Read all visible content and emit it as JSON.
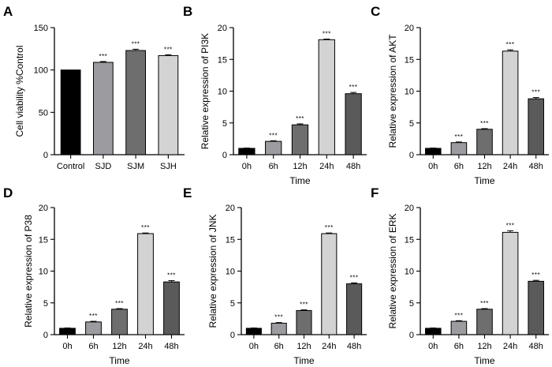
{
  "colors": {
    "black": "#000000",
    "grey_mid": "#9c9ca0",
    "grey_dark": "#6e6e6e",
    "grey_light": "#d3d3d3",
    "grey_deep": "#5a5a5a"
  },
  "chart_data": [
    {
      "panel": "A",
      "type": "bar",
      "title": "",
      "xlabel": "",
      "ylabel": "Cell viability %Control",
      "ylim": [
        0,
        150
      ],
      "yticks": [
        0,
        50,
        100,
        150
      ],
      "categories": [
        "Control",
        "SJD",
        "SJM",
        "SJH"
      ],
      "values": [
        100,
        109,
        123,
        117
      ],
      "errors": [
        0,
        1,
        1.5,
        1
      ],
      "significance": [
        "",
        "***",
        "***",
        "***"
      ],
      "bar_colors": [
        "#000000",
        "#9c9ca0",
        "#6e6e6e",
        "#d3d3d3"
      ],
      "grid": false
    },
    {
      "panel": "B",
      "type": "bar",
      "title": "",
      "xlabel": "Time",
      "ylabel": "Relative expression of PI3K",
      "ylim": [
        0,
        20
      ],
      "yticks": [
        0,
        5,
        10,
        15,
        20
      ],
      "categories": [
        "0h",
        "6h",
        "12h",
        "24h",
        "48h"
      ],
      "values": [
        1.0,
        2.1,
        4.7,
        18.1,
        9.6
      ],
      "errors": [
        0.05,
        0.1,
        0.15,
        0.1,
        0.2
      ],
      "significance": [
        "",
        "***",
        "***",
        "***",
        "***"
      ],
      "bar_colors": [
        "#000000",
        "#9c9ca0",
        "#6e6e6e",
        "#d3d3d3",
        "#5a5a5a"
      ],
      "grid": false
    },
    {
      "panel": "C",
      "type": "bar",
      "title": "",
      "xlabel": "Time",
      "ylabel": "Relative expression of  AKT",
      "ylim": [
        0,
        20
      ],
      "yticks": [
        0,
        5,
        10,
        15,
        20
      ],
      "categories": [
        "0h",
        "6h",
        "12h",
        "24h",
        "48h"
      ],
      "values": [
        1.0,
        1.9,
        4.0,
        16.3,
        8.8
      ],
      "errors": [
        0.05,
        0.1,
        0.1,
        0.2,
        0.2
      ],
      "significance": [
        "",
        "***",
        "***",
        "***",
        "***"
      ],
      "bar_colors": [
        "#000000",
        "#9c9ca0",
        "#6e6e6e",
        "#d3d3d3",
        "#5a5a5a"
      ],
      "grid": false
    },
    {
      "panel": "D",
      "type": "bar",
      "title": "",
      "xlabel": "Time",
      "ylabel": "Relative expression of P38",
      "ylim": [
        0,
        20
      ],
      "yticks": [
        0,
        5,
        10,
        15,
        20
      ],
      "categories": [
        "0h",
        "6h",
        "12h",
        "24h",
        "48h"
      ],
      "values": [
        1.0,
        2.0,
        4.0,
        15.9,
        8.3
      ],
      "errors": [
        0.05,
        0.1,
        0.1,
        0.1,
        0.2
      ],
      "significance": [
        "",
        "***",
        "***",
        "***",
        "***"
      ],
      "bar_colors": [
        "#000000",
        "#9c9ca0",
        "#6e6e6e",
        "#d3d3d3",
        "#5a5a5a"
      ],
      "grid": false
    },
    {
      "panel": "E",
      "type": "bar",
      "title": "",
      "xlabel": "Time",
      "ylabel": "Relative expression of JNK",
      "ylim": [
        0,
        20
      ],
      "yticks": [
        0,
        5,
        10,
        15,
        20
      ],
      "categories": [
        "0h",
        "6h",
        "12h",
        "24h",
        "48h"
      ],
      "values": [
        1.0,
        1.8,
        3.8,
        15.9,
        8.0
      ],
      "errors": [
        0.05,
        0.1,
        0.1,
        0.1,
        0.15
      ],
      "significance": [
        "",
        "***",
        "***",
        "***",
        "***"
      ],
      "bar_colors": [
        "#000000",
        "#9c9ca0",
        "#6e6e6e",
        "#d3d3d3",
        "#5a5a5a"
      ],
      "grid": false
    },
    {
      "panel": "F",
      "type": "bar",
      "title": "",
      "xlabel": "Time",
      "ylabel": "Relative expression of ERK",
      "ylim": [
        0,
        20
      ],
      "yticks": [
        0,
        5,
        10,
        15,
        20
      ],
      "categories": [
        "0h",
        "6h",
        "12h",
        "24h",
        "48h"
      ],
      "values": [
        1.0,
        2.1,
        4.0,
        16.1,
        8.4
      ],
      "errors": [
        0.05,
        0.1,
        0.1,
        0.25,
        0.15
      ],
      "significance": [
        "",
        "***",
        "***",
        "***",
        "***"
      ],
      "bar_colors": [
        "#000000",
        "#9c9ca0",
        "#6e6e6e",
        "#d3d3d3",
        "#5a5a5a"
      ],
      "grid": false
    }
  ]
}
